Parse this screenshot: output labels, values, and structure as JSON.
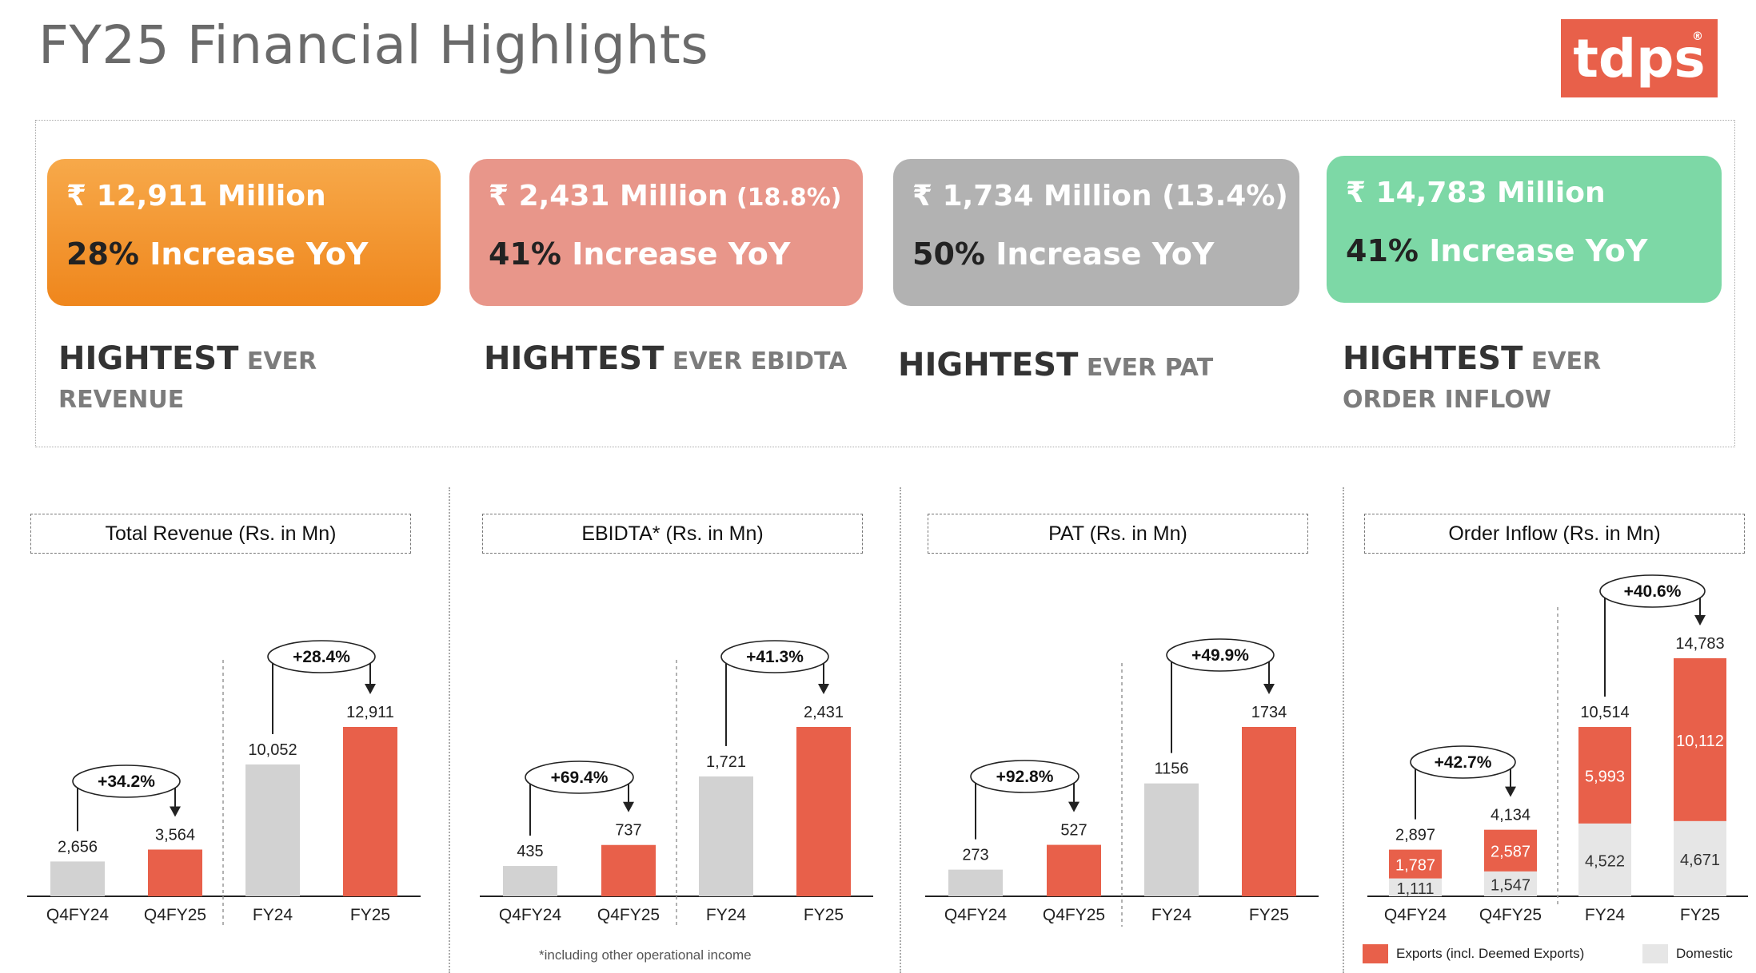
{
  "page": {
    "title": "FY25 Financial Highlights",
    "logo_text": "tdps",
    "logo_reg": "®",
    "accent_color": "#e8604a",
    "footnote": "*including other operational income"
  },
  "highlights": [
    {
      "amount": "₹ 12,911 Million",
      "amount_extra": "",
      "increase_pct": "28%",
      "increase_text": " Increase YoY",
      "head": "HIGHTEST",
      "rest": " EVER REVENUE",
      "color": "#f39a35"
    },
    {
      "amount": "₹ 2,431 Million",
      "amount_extra": " (18.8%)",
      "increase_pct": "41%",
      "increase_text": " Increase YoY",
      "head": "HIGHTEST",
      "rest": " EVER EBIDTA",
      "color": "#e8968a"
    },
    {
      "amount": "₹ 1,734  Million (13.4%)",
      "amount_extra": "",
      "increase_pct": "50%",
      "increase_text": " Increase YoY",
      "head": "HIGHTEST",
      "rest": " EVER PAT",
      "color": "#b2b2b2"
    },
    {
      "amount": "₹ 14,783 Million",
      "amount_extra": "",
      "increase_pct": "41%",
      "increase_text": " Increase YoY",
      "head": "HIGHTEST",
      "rest": " EVER ORDER INFLOW",
      "color": "#7dd8a6"
    }
  ],
  "legend": {
    "exports": "Exports (incl. Deemed Exports)",
    "domestic": "Domestic",
    "exports_color": "#e8604a",
    "domestic_color": "#e6e6e6"
  },
  "chart_data": [
    {
      "type": "bar",
      "title": "Total Revenue (Rs. in Mn)",
      "categories": [
        "Q4FY24",
        "Q4FY25",
        "FY24",
        "FY25"
      ],
      "values": [
        2656,
        3564,
        10052,
        12911
      ],
      "labels": [
        "2,656",
        "3,564",
        "10,052",
        "12,911"
      ],
      "colors": [
        "#d2d2d2",
        "#e8604a",
        "#d2d2d2",
        "#e8604a"
      ],
      "growth": [
        "+34.2%",
        "+28.4%"
      ]
    },
    {
      "type": "bar",
      "title": "EBIDTA* (Rs. in Mn)",
      "categories": [
        "Q4FY24",
        "Q4FY25",
        "FY24",
        "FY25"
      ],
      "values": [
        435,
        737,
        1721,
        2431
      ],
      "labels": [
        "435",
        "737",
        "1,721",
        "2,431"
      ],
      "colors": [
        "#d2d2d2",
        "#e8604a",
        "#d2d2d2",
        "#e8604a"
      ],
      "growth": [
        "+69.4%",
        "+41.3%"
      ]
    },
    {
      "type": "bar",
      "title": "PAT (Rs. in Mn)",
      "categories": [
        "Q4FY24",
        "Q4FY25",
        "FY24",
        "FY25"
      ],
      "values": [
        273,
        527,
        1156,
        1734
      ],
      "labels": [
        "273",
        "527",
        "1156",
        "1734"
      ],
      "colors": [
        "#d2d2d2",
        "#e8604a",
        "#d2d2d2",
        "#e8604a"
      ],
      "growth": [
        "+92.8%",
        "+49.9%"
      ]
    },
    {
      "type": "bar",
      "stacked": true,
      "title": "Order Inflow (Rs. in Mn)",
      "categories": [
        "Q4FY24",
        "Q4FY25",
        "FY24",
        "FY25"
      ],
      "series": [
        {
          "name": "Domestic",
          "values": [
            1111,
            1547,
            4522,
            4671
          ],
          "labels": [
            "1,111",
            "1,547",
            "4,522",
            "4,671"
          ],
          "color": "#e6e6e6"
        },
        {
          "name": "Exports (incl. Deemed Exports)",
          "values": [
            1787,
            2587,
            5993,
            10112
          ],
          "labels": [
            "1,787",
            "2,587",
            "5,993",
            "10,112"
          ],
          "color": "#e8604a"
        }
      ],
      "totals": [
        2897,
        4134,
        10514,
        14783
      ],
      "total_labels": [
        "2,897",
        "4,134",
        "10,514",
        "14,783"
      ],
      "growth": [
        "+42.7%",
        "+40.6%"
      ]
    }
  ]
}
